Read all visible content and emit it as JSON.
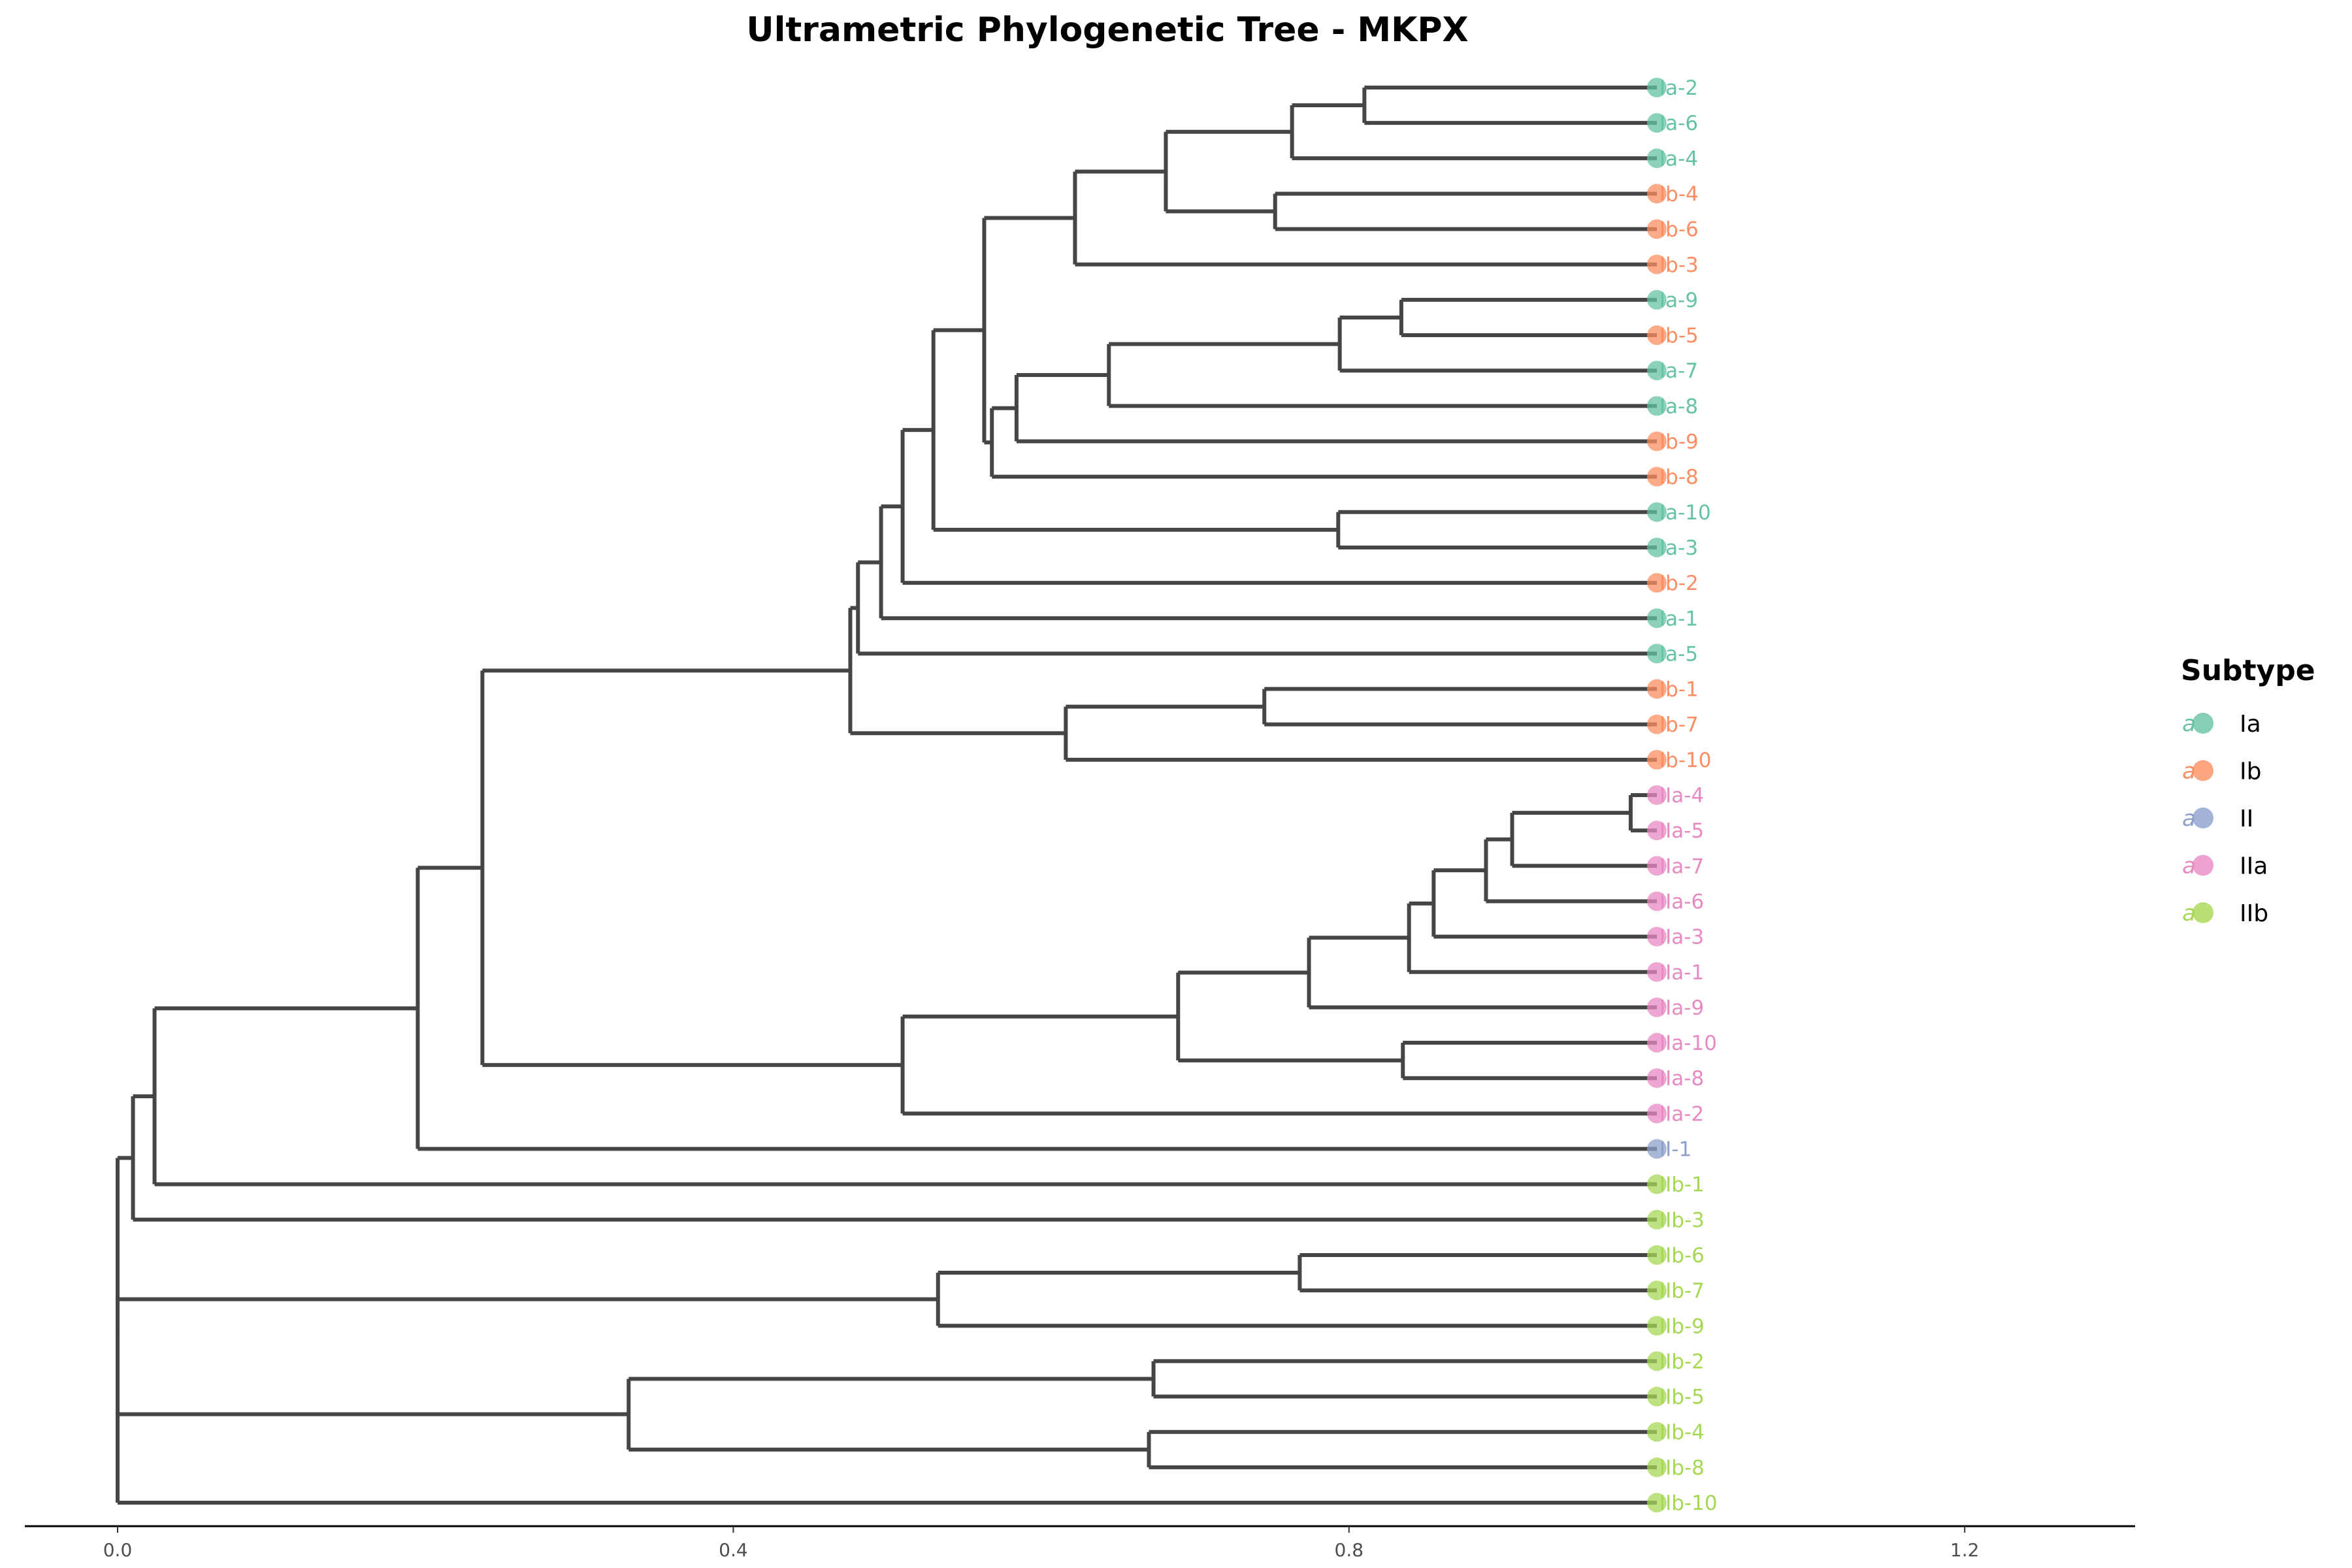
{
  "chart_data": {
    "type": "dendrogram",
    "title": "Ultrametric Phylogenetic Tree - MKPX",
    "xlabel": "",
    "ylabel": "",
    "xlim": [
      -0.06,
      1.31
    ],
    "x_ticks": [
      0.0,
      0.4,
      0.8,
      1.2
    ],
    "x_tick_labels": [
      "0.0",
      "0.4",
      "0.8",
      "1.2"
    ],
    "tip_depth": 1.0,
    "grid": false,
    "legend": {
      "title": "Subtype",
      "placement": "right",
      "glyph": "a",
      "entries": [
        {
          "label": "Ia",
          "color": "#66c2a5"
        },
        {
          "label": "Ib",
          "color": "#fc8d62"
        },
        {
          "label": "II",
          "color": "#8da0cb"
        },
        {
          "label": "IIa",
          "color": "#e78ac3"
        },
        {
          "label": "IIb",
          "color": "#a6d854"
        }
      ]
    },
    "tips": [
      {
        "label": "Ia-2",
        "subtype": "Ia"
      },
      {
        "label": "Ia-6",
        "subtype": "Ia"
      },
      {
        "label": "Ia-4",
        "subtype": "Ia"
      },
      {
        "label": "Ib-4",
        "subtype": "Ib"
      },
      {
        "label": "Ib-6",
        "subtype": "Ib"
      },
      {
        "label": "Ib-3",
        "subtype": "Ib"
      },
      {
        "label": "Ia-9",
        "subtype": "Ia"
      },
      {
        "label": "Ib-5",
        "subtype": "Ib"
      },
      {
        "label": "Ia-7",
        "subtype": "Ia"
      },
      {
        "label": "Ia-8",
        "subtype": "Ia"
      },
      {
        "label": "Ib-9",
        "subtype": "Ib"
      },
      {
        "label": "Ib-8",
        "subtype": "Ib"
      },
      {
        "label": "Ia-10",
        "subtype": "Ia"
      },
      {
        "label": "Ia-3",
        "subtype": "Ia"
      },
      {
        "label": "Ib-2",
        "subtype": "Ib"
      },
      {
        "label": "Ia-1",
        "subtype": "Ia"
      },
      {
        "label": "Ia-5",
        "subtype": "Ia"
      },
      {
        "label": "Ib-1",
        "subtype": "Ib"
      },
      {
        "label": "Ib-7",
        "subtype": "Ib"
      },
      {
        "label": "Ib-10",
        "subtype": "Ib"
      },
      {
        "label": "IIa-4",
        "subtype": "IIa"
      },
      {
        "label": "IIa-5",
        "subtype": "IIa"
      },
      {
        "label": "IIa-7",
        "subtype": "IIa"
      },
      {
        "label": "IIa-6",
        "subtype": "IIa"
      },
      {
        "label": "IIa-3",
        "subtype": "IIa"
      },
      {
        "label": "IIa-1",
        "subtype": "IIa"
      },
      {
        "label": "IIa-9",
        "subtype": "IIa"
      },
      {
        "label": "IIa-10",
        "subtype": "IIa"
      },
      {
        "label": "IIa-8",
        "subtype": "IIa"
      },
      {
        "label": "IIa-2",
        "subtype": "IIa"
      },
      {
        "label": "II-1",
        "subtype": "II"
      },
      {
        "label": "IIb-1",
        "subtype": "IIb"
      },
      {
        "label": "IIb-3",
        "subtype": "IIb"
      },
      {
        "label": "IIb-6",
        "subtype": "IIb"
      },
      {
        "label": "IIb-7",
        "subtype": "IIb"
      },
      {
        "label": "IIb-9",
        "subtype": "IIb"
      },
      {
        "label": "IIb-2",
        "subtype": "IIb"
      },
      {
        "label": "IIb-5",
        "subtype": "IIb"
      },
      {
        "label": "IIb-4",
        "subtype": "IIb"
      },
      {
        "label": "IIb-8",
        "subtype": "IIb"
      },
      {
        "label": "IIb-10",
        "subtype": "IIb"
      }
    ],
    "nodes": [
      {
        "id": "n01",
        "x": 0.81,
        "children": [
          "Ia-2",
          "Ia-6"
        ]
      },
      {
        "id": "n02",
        "x": 0.763,
        "children": [
          "n01",
          "Ia-4"
        ]
      },
      {
        "id": "n03",
        "x": 0.752,
        "children": [
          "Ib-4",
          "Ib-6"
        ]
      },
      {
        "id": "n04",
        "x": 0.681,
        "children": [
          "n02",
          "n03"
        ]
      },
      {
        "id": "n05",
        "x": 0.622,
        "children": [
          "n04",
          "Ib-3"
        ]
      },
      {
        "id": "n06",
        "x": 0.834,
        "children": [
          "Ia-9",
          "Ib-5"
        ]
      },
      {
        "id": "n07",
        "x": 0.794,
        "children": [
          "n06",
          "Ia-7"
        ]
      },
      {
        "id": "n08",
        "x": 0.644,
        "children": [
          "n07",
          "Ia-8"
        ]
      },
      {
        "id": "n09",
        "x": 0.584,
        "children": [
          "n08",
          "Ib-9"
        ]
      },
      {
        "id": "n10",
        "x": 0.568,
        "children": [
          "n09",
          "Ib-8"
        ]
      },
      {
        "id": "n11",
        "x": 0.563,
        "children": [
          "n05",
          "n10"
        ]
      },
      {
        "id": "n12",
        "x": 0.793,
        "children": [
          "Ia-10",
          "Ia-3"
        ]
      },
      {
        "id": "n13",
        "x": 0.53,
        "children": [
          "n11",
          "n12"
        ]
      },
      {
        "id": "n14",
        "x": 0.51,
        "children": [
          "n13",
          "Ib-2"
        ]
      },
      {
        "id": "n15",
        "x": 0.496,
        "children": [
          "n14",
          "Ia-1"
        ]
      },
      {
        "id": "n16",
        "x": 0.481,
        "children": [
          "n15",
          "Ia-5"
        ]
      },
      {
        "id": "n17",
        "x": 0.745,
        "children": [
          "Ib-1",
          "Ib-7"
        ]
      },
      {
        "id": "n18",
        "x": 0.616,
        "children": [
          "n17",
          "Ib-10"
        ]
      },
      {
        "id": "n19",
        "x": 0.476,
        "children": [
          "n16",
          "n18"
        ]
      },
      {
        "id": "n20",
        "x": 0.983,
        "children": [
          "IIa-4",
          "IIa-5"
        ]
      },
      {
        "id": "n21",
        "x": 0.906,
        "children": [
          "n20",
          "IIa-7"
        ]
      },
      {
        "id": "n22",
        "x": 0.889,
        "children": [
          "n21",
          "IIa-6"
        ]
      },
      {
        "id": "n23",
        "x": 0.855,
        "children": [
          "n22",
          "IIa-3"
        ]
      },
      {
        "id": "n24",
        "x": 0.839,
        "children": [
          "n23",
          "IIa-1"
        ]
      },
      {
        "id": "n25",
        "x": 0.774,
        "children": [
          "n24",
          "IIa-9"
        ]
      },
      {
        "id": "n26",
        "x": 0.835,
        "children": [
          "IIa-10",
          "IIa-8"
        ]
      },
      {
        "id": "n27",
        "x": 0.689,
        "children": [
          "n25",
          "n26"
        ]
      },
      {
        "id": "n28",
        "x": 0.51,
        "children": [
          "n27",
          "IIa-2"
        ]
      },
      {
        "id": "n29",
        "x": 0.237,
        "children": [
          "n19",
          "n28"
        ]
      },
      {
        "id": "n30",
        "x": 0.195,
        "children": [
          "n29",
          "II-1"
        ]
      },
      {
        "id": "n31",
        "x": 0.024,
        "children": [
          "n30",
          "IIb-1"
        ]
      },
      {
        "id": "n32",
        "x": 0.01,
        "children": [
          "n31",
          "IIb-3"
        ]
      },
      {
        "id": "n33",
        "x": 0.768,
        "children": [
          "IIb-6",
          "IIb-7"
        ]
      },
      {
        "id": "n34",
        "x": 0.533,
        "children": [
          "n33",
          "IIb-9"
        ]
      },
      {
        "id": "n35",
        "x": 0.673,
        "children": [
          "IIb-2",
          "IIb-5"
        ]
      },
      {
        "id": "n36",
        "x": 0.67,
        "children": [
          "IIb-4",
          "IIb-8"
        ]
      },
      {
        "id": "n37",
        "x": 0.332,
        "children": [
          "n35",
          "n36"
        ]
      },
      {
        "id": "n38",
        "x": 0.0,
        "children": [
          "n32",
          "n34",
          "n37",
          "IIb-10"
        ]
      }
    ],
    "root": "n38"
  }
}
